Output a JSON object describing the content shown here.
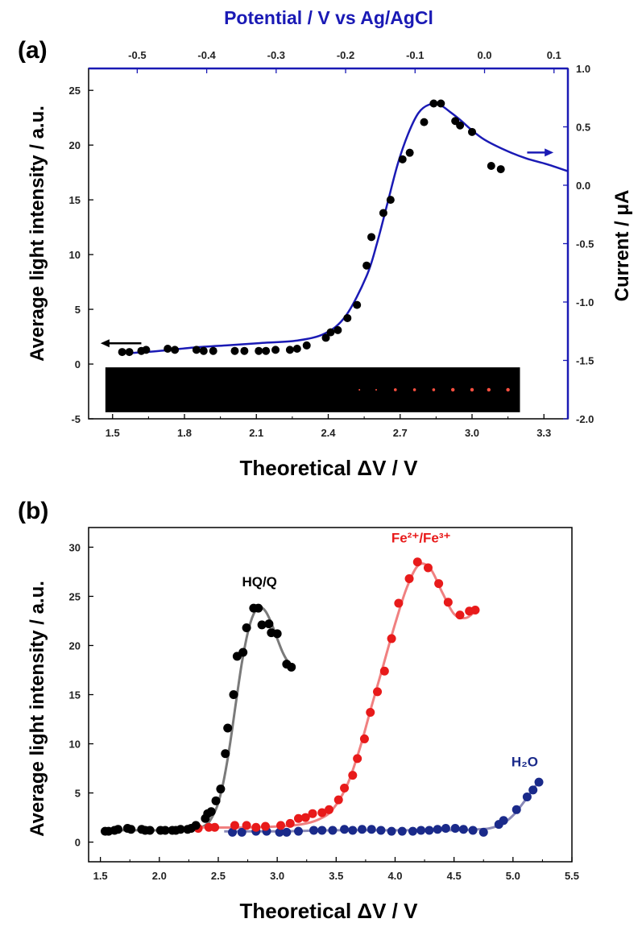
{
  "colors": {
    "blue": "#1a1ab5",
    "navy": "#1a2a8a",
    "red": "#e81a1a",
    "black": "#000000",
    "grey_fit": "#7a7a7a",
    "pink_fit": "#f08080"
  },
  "panel_a": {
    "label": "(a)",
    "arrow_left_direction": "left",
    "arrow_right_direction": "right"
  },
  "panel_b": {
    "label": "(b)"
  },
  "chart_data": [
    {
      "type": "scatter",
      "panel": "(a)",
      "xlabel": "Theoretical ΔV / V",
      "ylabel": "Average light intensity / a.u.",
      "top_xlabel": "Potential / V vs Ag/AgCl",
      "right_ylabel": "Current / μA",
      "xlim": [
        1.4,
        3.4
      ],
      "ylim": [
        -5,
        27
      ],
      "x_ticks": [
        "1.5",
        "1.8",
        "2.1",
        "2.4",
        "2.7",
        "3.0",
        "3.3"
      ],
      "y_ticks": [
        "-5",
        "0",
        "5",
        "10",
        "15",
        "20",
        "25"
      ],
      "top_xlim": [
        -0.57,
        0.12
      ],
      "top_ticks": [
        "-0.5",
        "-0.4",
        "-0.3",
        "-0.2",
        "-0.1",
        "0.0",
        "0.1"
      ],
      "right_ylim": [
        -2.0,
        1.0
      ],
      "right_ticks": [
        "-2.0",
        "-1.5",
        "-1.0",
        "-0.5",
        "0.0",
        "0.5",
        "1.0"
      ],
      "grid": false,
      "inset_image": "dark strip with red light spots",
      "series": [
        {
          "marker": "circle",
          "color": "#000000",
          "x": [
            1.54,
            1.57,
            1.62,
            1.64,
            1.73,
            1.76,
            1.85,
            1.88,
            1.92,
            2.01,
            2.05,
            2.11,
            2.14,
            2.18,
            2.24,
            2.27,
            2.31,
            2.39,
            2.41,
            2.44,
            2.48,
            2.52,
            2.56,
            2.58,
            2.63,
            2.66,
            2.71,
            2.74,
            2.8,
            2.84,
            2.87,
            2.93,
            2.95,
            3.0,
            3.08,
            3.12
          ],
          "y": [
            1.1,
            1.1,
            1.2,
            1.3,
            1.4,
            1.3,
            1.3,
            1.2,
            1.2,
            1.2,
            1.2,
            1.2,
            1.2,
            1.3,
            1.3,
            1.4,
            1.7,
            2.4,
            2.9,
            3.1,
            4.2,
            5.4,
            9.0,
            11.6,
            13.8,
            15.0,
            18.7,
            19.3,
            22.1,
            23.8,
            23.8,
            22.2,
            21.8,
            21.2,
            18.1,
            17.8
          ]
        },
        {
          "type": "line",
          "axis": "top/right",
          "color": "#1a1ab5",
          "x": [
            -0.515,
            -0.47,
            -0.42,
            -0.37,
            -0.32,
            -0.27,
            -0.23,
            -0.2,
            -0.17,
            -0.155,
            -0.14,
            -0.125,
            -0.11,
            -0.095,
            -0.08,
            -0.065,
            -0.05,
            -0.035,
            -0.02,
            0.0,
            0.03,
            0.06,
            0.09,
            0.12
          ],
          "y": [
            -1.44,
            -1.42,
            -1.39,
            -1.37,
            -1.35,
            -1.33,
            -1.27,
            -1.12,
            -0.78,
            -0.5,
            -0.16,
            0.18,
            0.44,
            0.62,
            0.69,
            0.69,
            0.63,
            0.56,
            0.48,
            0.39,
            0.3,
            0.23,
            0.18,
            0.12
          ]
        }
      ]
    },
    {
      "type": "scatter",
      "panel": "(b)",
      "xlabel": "Theoretical ΔV / V",
      "ylabel": "Average light intensity / a.u.",
      "xlim": [
        1.4,
        5.5
      ],
      "ylim": [
        -2,
        32
      ],
      "x_ticks": [
        "1.5",
        "2.0",
        "2.5",
        "3.0",
        "3.5",
        "4.0",
        "4.5",
        "5.0",
        "5.5"
      ],
      "y_ticks": [
        "0",
        "5",
        "10",
        "15",
        "20",
        "25",
        "30"
      ],
      "grid": false,
      "series": [
        {
          "name": "HQ/Q",
          "color": "#000000",
          "fit_color": "#7a7a7a",
          "x": [
            1.54,
            1.57,
            1.62,
            1.65,
            1.73,
            1.76,
            1.85,
            1.88,
            1.92,
            2.01,
            2.05,
            2.11,
            2.14,
            2.18,
            2.24,
            2.27,
            2.31,
            2.39,
            2.41,
            2.44,
            2.48,
            2.52,
            2.56,
            2.58,
            2.63,
            2.66,
            2.71,
            2.74,
            2.8,
            2.84,
            2.87,
            2.93,
            2.95,
            3.0,
            3.08,
            3.12
          ],
          "y": [
            1.1,
            1.1,
            1.2,
            1.3,
            1.4,
            1.3,
            1.3,
            1.2,
            1.2,
            1.2,
            1.2,
            1.2,
            1.2,
            1.3,
            1.3,
            1.4,
            1.7,
            2.4,
            2.9,
            3.1,
            4.2,
            5.4,
            9.0,
            11.6,
            15.0,
            18.9,
            19.3,
            21.8,
            23.8,
            23.8,
            22.1,
            22.2,
            21.3,
            21.2,
            18.1,
            17.8
          ],
          "fit_x": [
            1.54,
            1.8,
            2.1,
            2.3,
            2.4,
            2.45,
            2.5,
            2.55,
            2.6,
            2.65,
            2.7,
            2.75,
            2.8,
            2.85,
            2.9,
            2.95,
            3.0,
            3.05,
            3.1,
            3.13
          ],
          "fit_y": [
            1.2,
            1.2,
            1.2,
            1.3,
            1.8,
            2.6,
            4.0,
            6.5,
            10.0,
            14.2,
            18.2,
            21.3,
            23.2,
            23.9,
            23.5,
            22.3,
            20.7,
            19.2,
            18.2,
            17.9
          ]
        },
        {
          "name": "Fe²⁺/Fe³⁺",
          "color": "#e81a1a",
          "fit_color": "#f08080",
          "x": [
            2.33,
            2.42,
            2.47,
            2.64,
            2.74,
            2.82,
            2.9,
            3.03,
            3.11,
            3.18,
            3.24,
            3.3,
            3.38,
            3.44,
            3.52,
            3.57,
            3.64,
            3.68,
            3.74,
            3.79,
            3.85,
            3.91,
            3.97,
            4.03,
            4.12,
            4.19,
            4.28,
            4.37,
            4.45,
            4.55,
            4.63,
            4.68
          ],
          "y": [
            1.4,
            1.5,
            1.5,
            1.7,
            1.7,
            1.5,
            1.6,
            1.7,
            1.9,
            2.4,
            2.5,
            2.9,
            3.0,
            3.3,
            4.3,
            5.5,
            6.8,
            8.5,
            10.5,
            13.2,
            15.3,
            17.4,
            20.7,
            24.3,
            26.8,
            28.5,
            27.9,
            26.3,
            24.4,
            23.1,
            23.5,
            23.6
          ],
          "fit_x": [
            2.3,
            2.8,
            3.2,
            3.4,
            3.5,
            3.6,
            3.7,
            3.8,
            3.9,
            4.0,
            4.1,
            4.2,
            4.3,
            4.4,
            4.5,
            4.6,
            4.68
          ],
          "fit_y": [
            1.5,
            1.5,
            1.8,
            2.6,
            3.8,
            6.0,
            9.5,
            13.8,
            18.0,
            22.2,
            25.9,
            28.2,
            27.8,
            25.4,
            23.2,
            22.8,
            23.5
          ]
        },
        {
          "name": "H₂O",
          "color": "#1a2a8a",
          "fit_color": "#8a8ab8",
          "x": [
            2.62,
            2.7,
            2.82,
            2.91,
            3.02,
            3.08,
            3.18,
            3.31,
            3.38,
            3.47,
            3.57,
            3.64,
            3.72,
            3.8,
            3.88,
            3.97,
            4.06,
            4.15,
            4.22,
            4.29,
            4.36,
            4.43,
            4.51,
            4.58,
            4.66,
            4.75,
            4.88,
            4.92,
            5.03,
            5.12,
            5.17,
            5.22
          ],
          "y": [
            1.0,
            1.0,
            1.1,
            1.1,
            1.0,
            1.0,
            1.1,
            1.2,
            1.2,
            1.2,
            1.3,
            1.2,
            1.3,
            1.3,
            1.2,
            1.1,
            1.1,
            1.1,
            1.2,
            1.2,
            1.3,
            1.4,
            1.4,
            1.3,
            1.2,
            1.0,
            1.8,
            2.2,
            3.3,
            4.6,
            5.3,
            6.1
          ],
          "fit_x": [
            2.55,
            3.0,
            3.5,
            4.0,
            4.5,
            4.7,
            4.8,
            4.9,
            5.0,
            5.1,
            5.22
          ],
          "fit_y": [
            1.1,
            1.1,
            1.2,
            1.2,
            1.2,
            1.3,
            1.4,
            1.8,
            2.7,
            4.2,
            6.2
          ]
        }
      ]
    }
  ]
}
